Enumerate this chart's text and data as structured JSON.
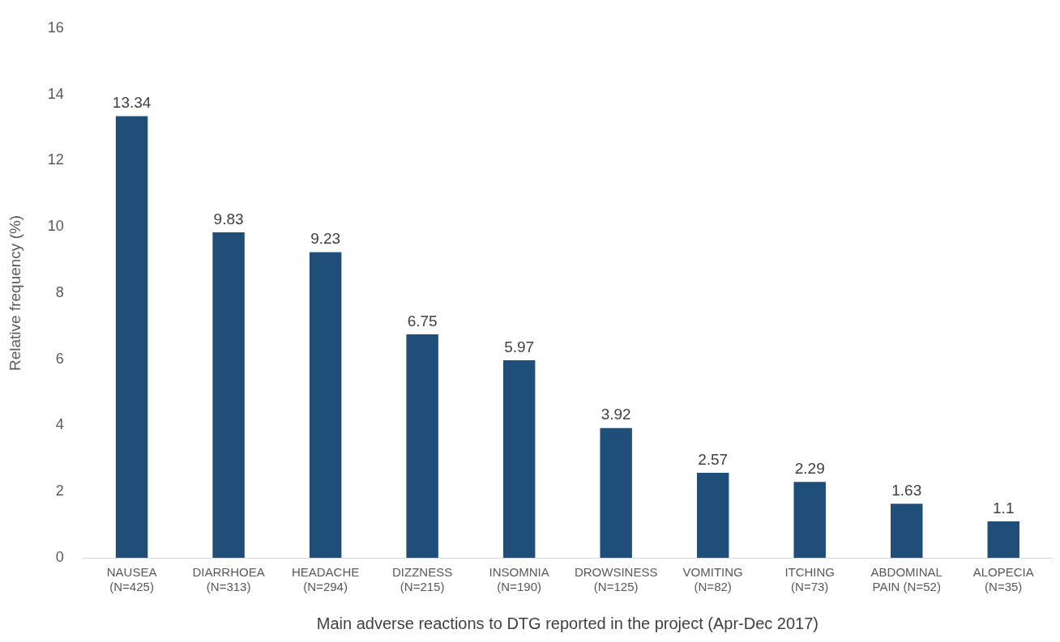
{
  "chart_data": {
    "type": "bar",
    "xlabel": "Main adverse reactions to DTG reported in the project (Apr-Dec 2017)",
    "ylabel": "Relative frequency (%)",
    "categories": [
      "NAUSEA\n(N=425)",
      "DIARRHOEA\n(N=313)",
      "HEADACHE\n(N=294)",
      "DIZZNESS\n(N=215)",
      "INSOMNIA\n(N=190)",
      "DROWSINESS\n(N=125)",
      "VOMITING\n(N=82)",
      "ITCHING\n(N=73)",
      "ABDOMINAL\nPAIN (N=52)",
      "ALOPECIA\n(N=35)"
    ],
    "values": [
      13.34,
      9.83,
      9.23,
      6.75,
      5.97,
      3.92,
      2.57,
      2.29,
      1.63,
      1.1
    ],
    "color": "#1f4e79",
    "ylim": [
      0,
      16
    ],
    "yticks": [
      0,
      2,
      4,
      6,
      8,
      10,
      12,
      14,
      16
    ],
    "grid": false,
    "legend": false,
    "data_labels": true
  }
}
